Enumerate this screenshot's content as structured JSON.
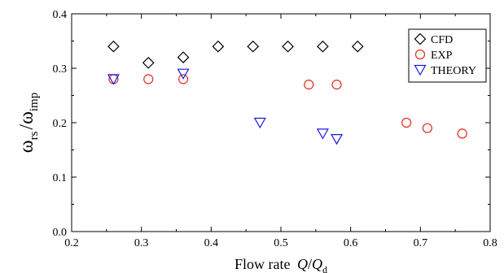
{
  "chart_data": {
    "type": "scatter",
    "xlabel": "Flow rate",
    "xlabel_var": "Q",
    "xlabel_sep": "/",
    "xlabel_var2": "Q",
    "xlabel_sub": "d",
    "ylabel_var": "ω",
    "ylabel_sub": "rs",
    "ylabel_sep": "/",
    "ylabel_var2": "ω",
    "ylabel_sub2": "imp",
    "xlim": [
      0.2,
      0.8
    ],
    "ylim": [
      0.0,
      0.4
    ],
    "xticks": [
      "0.2",
      "0.3",
      "0.4",
      "0.5",
      "0.6",
      "0.7",
      "0.8"
    ],
    "yticks": [
      "0.0",
      "0.1",
      "0.2",
      "0.3",
      "0.4"
    ],
    "legend_position": "top-right",
    "series": [
      {
        "name": "CFD",
        "marker": "diamond",
        "color": "#000000",
        "points": [
          [
            0.26,
            0.34
          ],
          [
            0.31,
            0.31
          ],
          [
            0.36,
            0.32
          ],
          [
            0.41,
            0.34
          ],
          [
            0.46,
            0.34
          ],
          [
            0.51,
            0.34
          ],
          [
            0.56,
            0.34
          ],
          [
            0.61,
            0.34
          ]
        ]
      },
      {
        "name": "EXP",
        "marker": "circle",
        "color": "#e8261a",
        "points": [
          [
            0.26,
            0.28
          ],
          [
            0.31,
            0.28
          ],
          [
            0.36,
            0.28
          ],
          [
            0.54,
            0.27
          ],
          [
            0.58,
            0.27
          ],
          [
            0.68,
            0.2
          ],
          [
            0.71,
            0.19
          ],
          [
            0.76,
            0.18
          ]
        ]
      },
      {
        "name": "THEORY",
        "marker": "triangle-down",
        "color": "#1a1adb",
        "points": [
          [
            0.26,
            0.28
          ],
          [
            0.36,
            0.29
          ],
          [
            0.47,
            0.2
          ],
          [
            0.56,
            0.18
          ],
          [
            0.58,
            0.17
          ]
        ]
      }
    ]
  }
}
